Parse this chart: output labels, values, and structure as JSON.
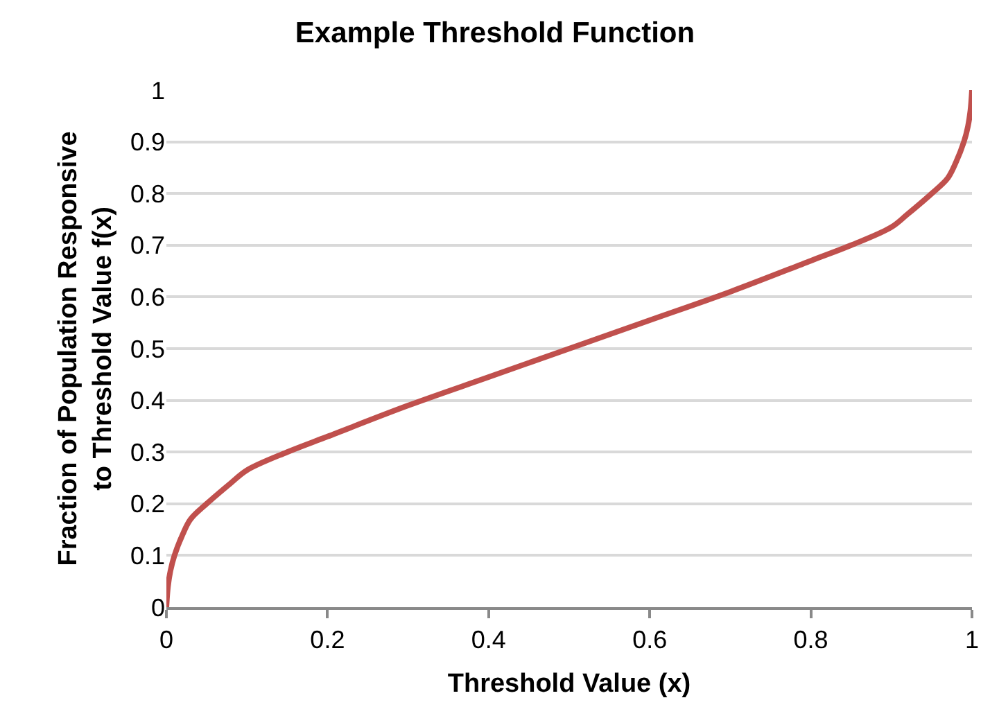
{
  "chart_data": {
    "type": "line",
    "title": "Example Threshold Function",
    "xlabel": "Threshold Value (x)",
    "ylabel": "Fraction of Population Responsive to Threshold Value f(x)",
    "xlim": [
      0,
      1
    ],
    "xticks": [
      0,
      0.2,
      0.4,
      0.6,
      0.8,
      1
    ],
    "ylim": [
      0,
      1
    ],
    "yticks": [
      0,
      0.1,
      0.2,
      0.3,
      0.4,
      0.5,
      0.6,
      0.7,
      0.8,
      0.9,
      1
    ],
    "grid": "y",
    "marker": "none",
    "line_style": "solid",
    "series": [
      {
        "color": "#c0504d",
        "x": [
          0,
          0.002,
          0.005,
          0.01,
          0.02,
          0.03,
          0.05,
          0.08,
          0.1,
          0.15,
          0.2,
          0.3,
          0.4,
          0.5,
          0.6,
          0.7,
          0.8,
          0.85,
          0.9,
          0.92,
          0.95,
          0.97,
          0.98,
          0.99,
          0.995,
          0.998,
          1
        ],
        "values": [
          0,
          0.04,
          0.07,
          0.1,
          0.14,
          0.17,
          0.2,
          0.24,
          0.265,
          0.3,
          0.33,
          0.39,
          0.445,
          0.5,
          0.555,
          0.61,
          0.67,
          0.7,
          0.735,
          0.76,
          0.8,
          0.83,
          0.86,
          0.9,
          0.93,
          0.96,
          1
        ]
      }
    ]
  }
}
